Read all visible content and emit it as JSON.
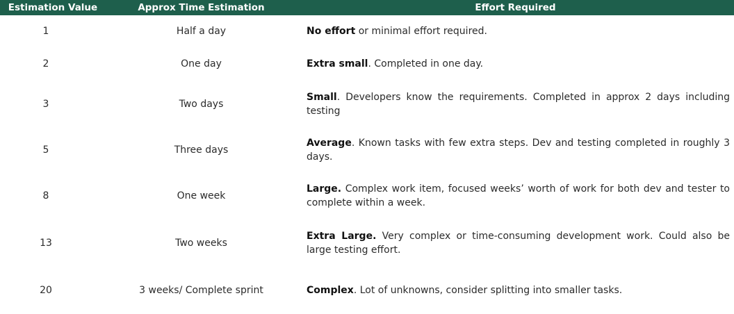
{
  "headers": {
    "estimation_value": "Estimation Value",
    "approx_time": "Approx Time Estimation",
    "effort_required": "Effort Required"
  },
  "rows": [
    {
      "value": "1",
      "time": "Half a day",
      "effort_bold": "No effort",
      "effort_rest": " or minimal effort required."
    },
    {
      "value": "2",
      "time": "One day",
      "effort_bold": "Extra small",
      "effort_rest": ". Completed in one day."
    },
    {
      "value": "3",
      "time": "Two days",
      "effort_bold": "Small",
      "effort_rest": ". Developers know the requirements. Completed in approx 2 days including testing"
    },
    {
      "value": "5",
      "time": "Three days",
      "effort_bold": "Average",
      "effort_rest": ". Known tasks with few extra steps. Dev and testing completed in roughly 3 days."
    },
    {
      "value": "8",
      "time": "One week",
      "effort_bold": "Large.",
      "effort_rest": " Complex work item, focused weeks’ worth of work for both dev and tester to complete within a week."
    },
    {
      "value": "13",
      "time": "Two weeks",
      "effort_bold": "Extra Large.",
      "effort_rest": " Very complex or time-consuming development work. Could also be large testing effort."
    },
    {
      "value": "20",
      "time": "3 weeks/ Complete sprint",
      "effort_bold": "Complex",
      "effort_rest": ". Lot of unknowns, consider splitting into smaller tasks."
    }
  ],
  "colors": {
    "header_bg": "#1e5f4c",
    "header_text": "#ffffff"
  }
}
